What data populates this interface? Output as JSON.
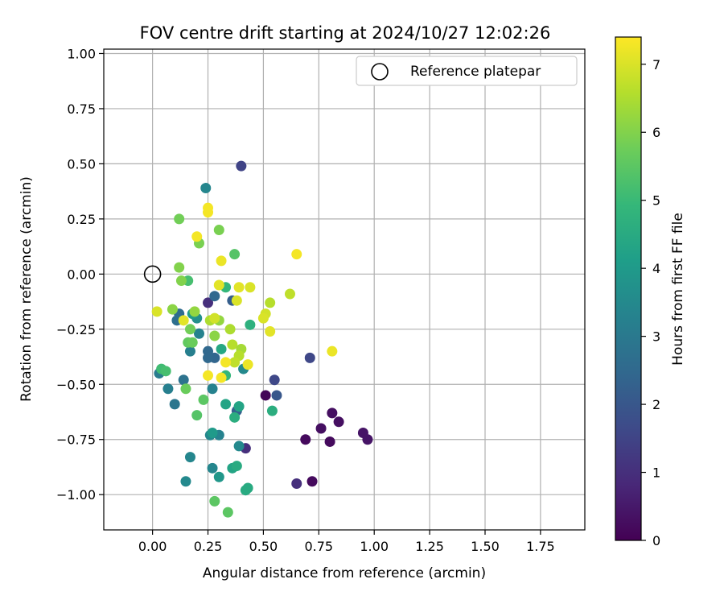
{
  "chart_data": {
    "type": "scatter",
    "title": "FOV centre drift starting at 2024/10/27 12:02:26",
    "xlabel": "Angular distance from reference (arcmin)",
    "ylabel": "Rotation from reference (arcmin)",
    "xlim": [
      -0.22,
      1.95
    ],
    "ylim": [
      -1.16,
      1.02
    ],
    "xticks": [
      0.0,
      0.25,
      0.5,
      0.75,
      1.0,
      1.25,
      1.5,
      1.75
    ],
    "xtick_labels": [
      "0.00",
      "0.25",
      "0.50",
      "0.75",
      "1.00",
      "1.25",
      "1.50",
      "1.75"
    ],
    "yticks": [
      1.0,
      0.75,
      0.5,
      0.25,
      0.0,
      -0.25,
      -0.5,
      -0.75,
      -1.0
    ],
    "ytick_labels": [
      "1.00",
      "0.75",
      "0.50",
      "0.25",
      "0.00",
      "−0.25",
      "−0.50",
      "−0.75",
      "−1.00"
    ],
    "grid": true,
    "legend": {
      "position": "top-right",
      "entries": [
        "Reference platepar"
      ]
    },
    "reference_point": {
      "x": 0.0,
      "y": 0.0
    },
    "colorbar": {
      "label": "Hours from first FF file",
      "colormap": "viridis",
      "range": [
        0,
        7.4
      ],
      "ticks": [
        0,
        1,
        2,
        3,
        4,
        5,
        6,
        7
      ],
      "tick_labels": [
        "0",
        "1",
        "2",
        "3",
        "4",
        "5",
        "6",
        "7"
      ]
    },
    "points": [
      {
        "x": 0.51,
        "y": -0.55,
        "hours": 0.1
      },
      {
        "x": 0.69,
        "y": -0.75,
        "hours": 0.2
      },
      {
        "x": 0.72,
        "y": -0.94,
        "hours": 0.2
      },
      {
        "x": 0.76,
        "y": -0.7,
        "hours": 0.3
      },
      {
        "x": 0.8,
        "y": -0.76,
        "hours": 0.2
      },
      {
        "x": 0.81,
        "y": -0.63,
        "hours": 0.3
      },
      {
        "x": 0.84,
        "y": -0.67,
        "hours": 0.3
      },
      {
        "x": 0.95,
        "y": -0.72,
        "hours": 0.4
      },
      {
        "x": 0.97,
        "y": -0.75,
        "hours": 0.4
      },
      {
        "x": 0.65,
        "y": -0.95,
        "hours": 1.0
      },
      {
        "x": 0.42,
        "y": -0.79,
        "hours": 1.0
      },
      {
        "x": 0.25,
        "y": -0.13,
        "hours": 1.0
      },
      {
        "x": 0.4,
        "y": 0.49,
        "hours": 1.5
      },
      {
        "x": 0.71,
        "y": -0.38,
        "hours": 1.6
      },
      {
        "x": 0.55,
        "y": -0.48,
        "hours": 1.6
      },
      {
        "x": 0.56,
        "y": -0.55,
        "hours": 2.0
      },
      {
        "x": 0.36,
        "y": -0.12,
        "hours": 2.2
      },
      {
        "x": 0.38,
        "y": -0.62,
        "hours": 2.3
      },
      {
        "x": 0.28,
        "y": -0.1,
        "hours": 2.5
      },
      {
        "x": 0.25,
        "y": -0.35,
        "hours": 2.5
      },
      {
        "x": 0.28,
        "y": -0.38,
        "hours": 2.4
      },
      {
        "x": 0.25,
        "y": -0.38,
        "hours": 2.5
      },
      {
        "x": 0.12,
        "y": -0.18,
        "hours": 2.6
      },
      {
        "x": 0.11,
        "y": -0.21,
        "hours": 2.7
      },
      {
        "x": 0.14,
        "y": -0.48,
        "hours": 2.8
      },
      {
        "x": 0.1,
        "y": -0.59,
        "hours": 2.9
      },
      {
        "x": 0.03,
        "y": -0.45,
        "hours": 3.1
      },
      {
        "x": 0.07,
        "y": -0.52,
        "hours": 3.2
      },
      {
        "x": 0.17,
        "y": -0.35,
        "hours": 3.2
      },
      {
        "x": 0.21,
        "y": -0.27,
        "hours": 3.3
      },
      {
        "x": 0.27,
        "y": -0.52,
        "hours": 3.3
      },
      {
        "x": 0.26,
        "y": -0.73,
        "hours": 3.4
      },
      {
        "x": 0.3,
        "y": -0.73,
        "hours": 3.3
      },
      {
        "x": 0.27,
        "y": -0.88,
        "hours": 3.4
      },
      {
        "x": 0.15,
        "y": -0.94,
        "hours": 3.5
      },
      {
        "x": 0.17,
        "y": -0.83,
        "hours": 3.4
      },
      {
        "x": 0.24,
        "y": 0.39,
        "hours": 3.4
      },
      {
        "x": 0.39,
        "y": -0.78,
        "hours": 3.5
      },
      {
        "x": 0.3,
        "y": -0.92,
        "hours": 3.9
      },
      {
        "x": 0.41,
        "y": -0.43,
        "hours": 3.5
      },
      {
        "x": 0.2,
        "y": -0.2,
        "hours": 3.7
      },
      {
        "x": 0.18,
        "y": -0.18,
        "hours": 4.0
      },
      {
        "x": 0.27,
        "y": -0.72,
        "hours": 4.0
      },
      {
        "x": 0.36,
        "y": -0.88,
        "hours": 4.3
      },
      {
        "x": 0.39,
        "y": -0.6,
        "hours": 4.3
      },
      {
        "x": 0.33,
        "y": -0.59,
        "hours": 4.3
      },
      {
        "x": 0.31,
        "y": -0.34,
        "hours": 4.4
      },
      {
        "x": 0.38,
        "y": -0.87,
        "hours": 4.5
      },
      {
        "x": 0.43,
        "y": -0.97,
        "hours": 4.5
      },
      {
        "x": 0.42,
        "y": -0.98,
        "hours": 4.5
      },
      {
        "x": 0.37,
        "y": -0.65,
        "hours": 4.6
      },
      {
        "x": 0.44,
        "y": -0.23,
        "hours": 4.7
      },
      {
        "x": 0.54,
        "y": -0.62,
        "hours": 4.6
      },
      {
        "x": 0.33,
        "y": -0.06,
        "hours": 4.9
      },
      {
        "x": 0.33,
        "y": -0.46,
        "hours": 4.9
      },
      {
        "x": 0.04,
        "y": -0.43,
        "hours": 5.1
      },
      {
        "x": 0.06,
        "y": -0.44,
        "hours": 5.2
      },
      {
        "x": 0.16,
        "y": -0.03,
        "hours": 5.2
      },
      {
        "x": 0.37,
        "y": 0.09,
        "hours": 5.4
      },
      {
        "x": 0.2,
        "y": -0.64,
        "hours": 5.4
      },
      {
        "x": 0.23,
        "y": -0.57,
        "hours": 5.5
      },
      {
        "x": 0.28,
        "y": -1.03,
        "hours": 5.5
      },
      {
        "x": 0.34,
        "y": -1.08,
        "hours": 5.5
      },
      {
        "x": 0.15,
        "y": -0.52,
        "hours": 5.7
      },
      {
        "x": 0.16,
        "y": -0.31,
        "hours": 5.6
      },
      {
        "x": 0.17,
        "y": -0.25,
        "hours": 5.8
      },
      {
        "x": 0.18,
        "y": -0.31,
        "hours": 5.7
      },
      {
        "x": 0.12,
        "y": 0.25,
        "hours": 5.8
      },
      {
        "x": 0.3,
        "y": 0.2,
        "hours": 5.9
      },
      {
        "x": 0.21,
        "y": 0.14,
        "hours": 5.9
      },
      {
        "x": 0.12,
        "y": 0.03,
        "hours": 6.0
      },
      {
        "x": 0.13,
        "y": -0.03,
        "hours": 6.0
      },
      {
        "x": 0.09,
        "y": -0.16,
        "hours": 6.1
      },
      {
        "x": 0.19,
        "y": -0.17,
        "hours": 6.2
      },
      {
        "x": 0.28,
        "y": -0.28,
        "hours": 6.1
      },
      {
        "x": 0.3,
        "y": -0.21,
        "hours": 6.2
      },
      {
        "x": 0.26,
        "y": -0.21,
        "hours": 6.5
      },
      {
        "x": 0.35,
        "y": -0.25,
        "hours": 6.5
      },
      {
        "x": 0.36,
        "y": -0.32,
        "hours": 6.6
      },
      {
        "x": 0.4,
        "y": -0.34,
        "hours": 6.4
      },
      {
        "x": 0.39,
        "y": -0.37,
        "hours": 6.6
      },
      {
        "x": 0.37,
        "y": -0.4,
        "hours": 6.7
      },
      {
        "x": 0.53,
        "y": -0.13,
        "hours": 6.6
      },
      {
        "x": 0.62,
        "y": -0.09,
        "hours": 6.7
      },
      {
        "x": 0.51,
        "y": -0.18,
        "hours": 6.9
      },
      {
        "x": 0.5,
        "y": -0.2,
        "hours": 7.0
      },
      {
        "x": 0.53,
        "y": -0.26,
        "hours": 7.1
      },
      {
        "x": 0.44,
        "y": -0.06,
        "hours": 7.0
      },
      {
        "x": 0.39,
        "y": -0.06,
        "hours": 7.1
      },
      {
        "x": 0.38,
        "y": -0.12,
        "hours": 7.0
      },
      {
        "x": 0.28,
        "y": -0.2,
        "hours": 6.9
      },
      {
        "x": 0.3,
        "y": -0.05,
        "hours": 7.1
      },
      {
        "x": 0.02,
        "y": -0.17,
        "hours": 7.0
      },
      {
        "x": 0.14,
        "y": -0.21,
        "hours": 7.1
      },
      {
        "x": 0.2,
        "y": 0.17,
        "hours": 7.3
      },
      {
        "x": 0.25,
        "y": 0.3,
        "hours": 7.3
      },
      {
        "x": 0.25,
        "y": 0.28,
        "hours": 7.3
      },
      {
        "x": 0.31,
        "y": 0.06,
        "hours": 7.2
      },
      {
        "x": 0.65,
        "y": 0.09,
        "hours": 7.3
      },
      {
        "x": 0.81,
        "y": -0.35,
        "hours": 7.2
      },
      {
        "x": 0.43,
        "y": -0.41,
        "hours": 7.2
      },
      {
        "x": 0.33,
        "y": -0.4,
        "hours": 7.3
      },
      {
        "x": 0.31,
        "y": -0.47,
        "hours": 7.3
      },
      {
        "x": 0.25,
        "y": -0.46,
        "hours": 7.3
      }
    ]
  }
}
